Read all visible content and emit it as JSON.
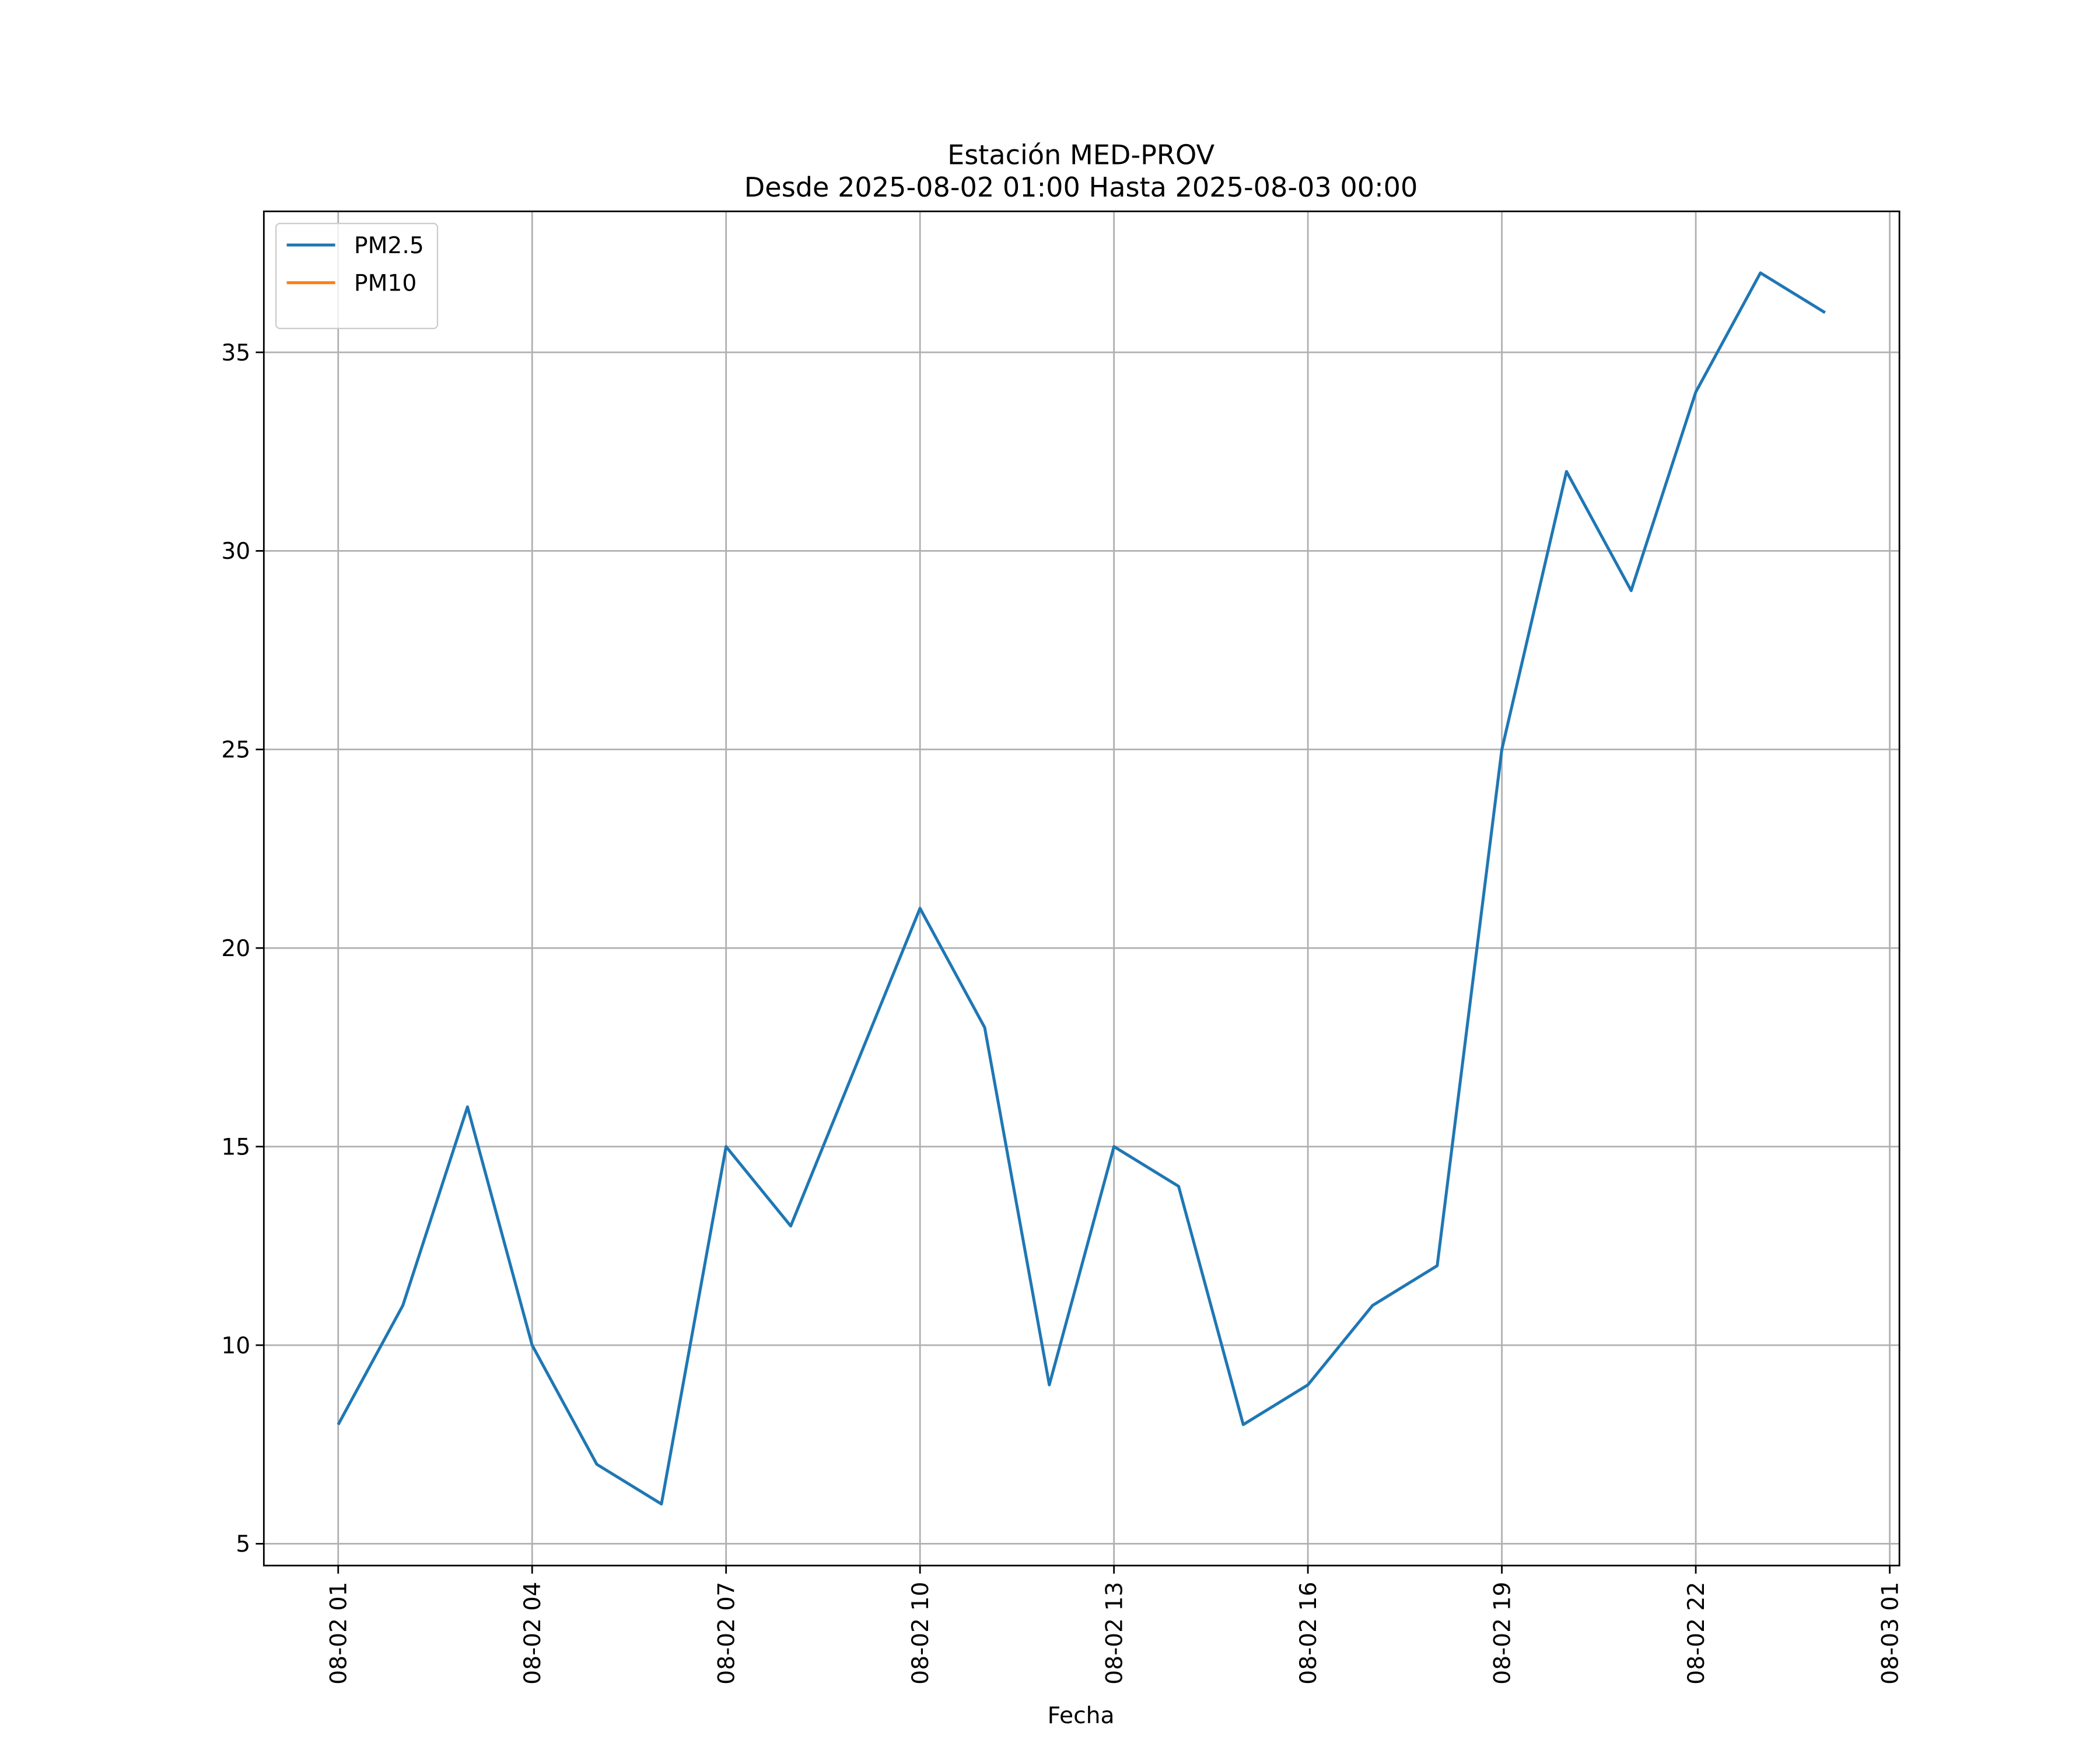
{
  "chart_data": {
    "type": "line",
    "title": "Estación MED-PROV",
    "subtitle": "Desde 2025-08-02 01:00 Hasta 2025-08-03 00:00",
    "x_label": "Fecha",
    "x": [
      "08-02 01",
      "08-02 02",
      "08-02 03",
      "08-02 04",
      "08-02 05",
      "08-02 06",
      "08-02 07",
      "08-02 08",
      "08-02 09",
      "08-02 10",
      "08-02 11",
      "08-02 12",
      "08-02 13",
      "08-02 14",
      "08-02 15",
      "08-02 16",
      "08-02 17",
      "08-02 18",
      "08-02 19",
      "08-02 20",
      "08-02 21",
      "08-02 22",
      "08-02 23",
      "08-03 00"
    ],
    "series": [
      {
        "name": "PM2.5",
        "color": "#1f77b4",
        "values": [
          8,
          11,
          16,
          10,
          7,
          6,
          15,
          13,
          17,
          21,
          18,
          9,
          15,
          14,
          8,
          9,
          11,
          12,
          25,
          32,
          29,
          34,
          37,
          36
        ]
      },
      {
        "name": "PM10",
        "color": "#ff7f0e",
        "values": [
          null,
          null,
          null,
          null,
          null,
          null,
          null,
          null,
          null,
          null,
          null,
          null,
          null,
          null,
          null,
          null,
          null,
          null,
          null,
          null,
          null,
          null,
          null,
          null
        ]
      }
    ],
    "xlim": [
      "08-01 23:51",
      "08-03 01:09"
    ],
    "xticks": [
      "08-02 01",
      "08-02 04",
      "08-02 07",
      "08-02 10",
      "08-02 13",
      "08-02 16",
      "08-02 19",
      "08-02 22",
      "08-03 01"
    ],
    "ylim": [
      4.45,
      38.55
    ],
    "yticks": [
      5,
      10,
      15,
      20,
      25,
      30,
      35
    ],
    "grid": true,
    "legend": "upper left"
  }
}
